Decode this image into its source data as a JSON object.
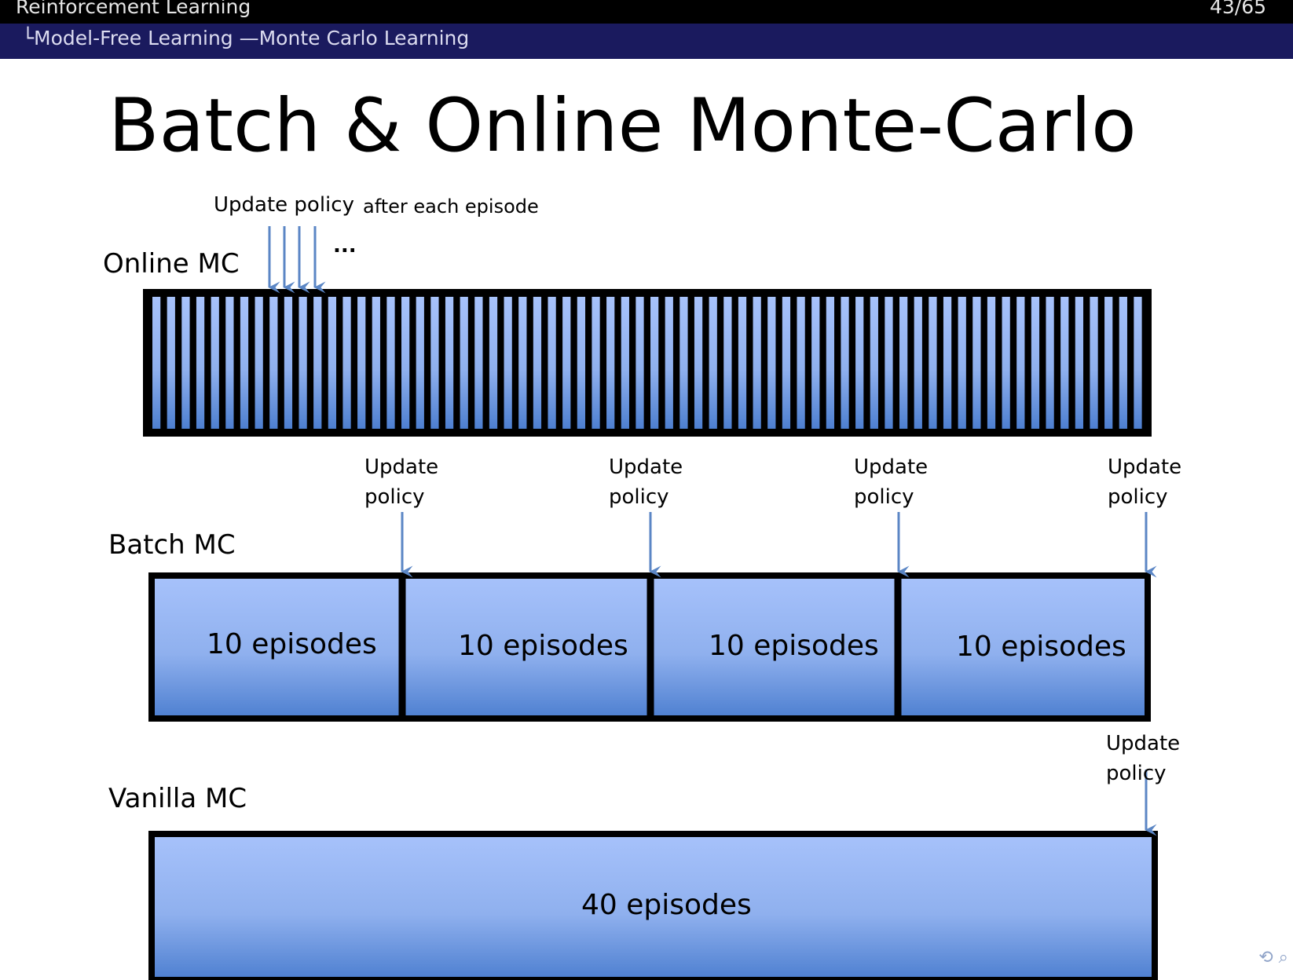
{
  "header": {
    "section": "Reinforcement Learning",
    "subsection": "└Model-Free Learning —Monte Carlo Learning",
    "page": "43/65"
  },
  "slide": {
    "title": "Batch & Online Monte-Carlo"
  },
  "online": {
    "label": "Online  MC",
    "update_label": "Update policy",
    "after_label": "after each episode",
    "ellipsis": "..."
  },
  "batch": {
    "label": "Batch MC",
    "update_line1": "Update",
    "update_line2": "policy",
    "segments": [
      "10 episodes",
      "10 episodes",
      "10 episodes",
      "10 episodes"
    ]
  },
  "vanilla": {
    "label": "Vanilla MC",
    "update_line1": "Update",
    "update_line2": "policy",
    "segment": "40 episodes"
  },
  "colors": {
    "box_light": "#a7c2fb",
    "box_dark": "#4d7fd0",
    "arrow": "#5b86c5",
    "border": "#000000"
  }
}
